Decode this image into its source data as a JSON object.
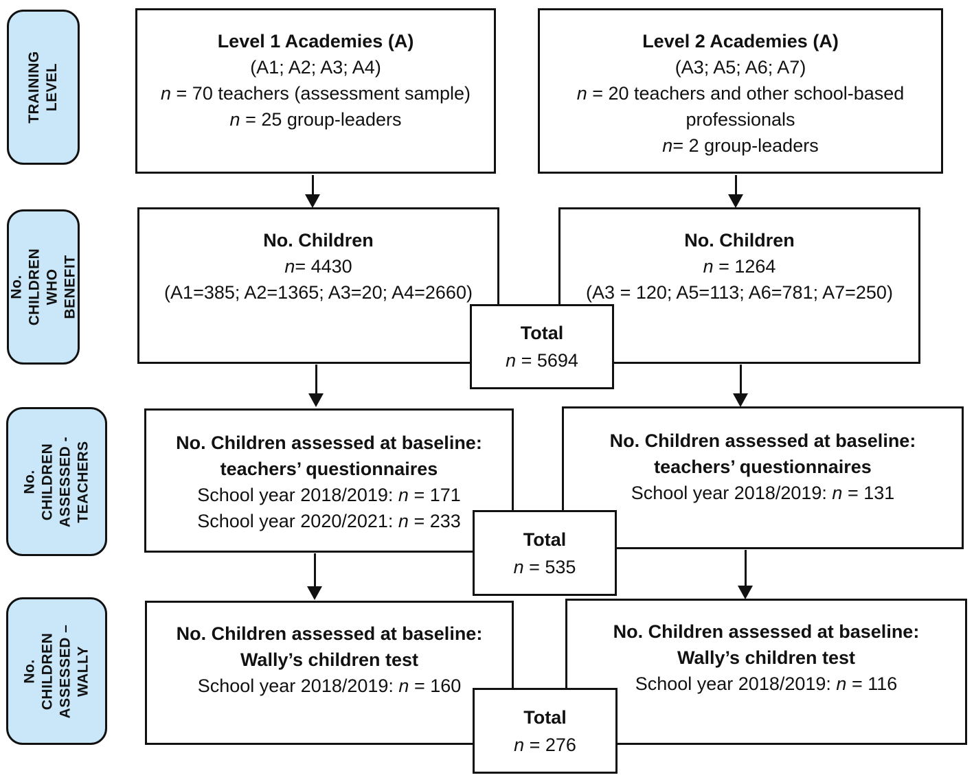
{
  "colors": {
    "label_bg": "#c9e7f8",
    "line": "#111111"
  },
  "sidebar": {
    "labels": [
      "TRAINING\nLEVEL",
      "No. CHILDREN\nWHO BENEFIT",
      "No. CHILDREN\nASSESSED -\nTEACHERS",
      "No. CHILDREN\nASSESSED –\nWALLY"
    ]
  },
  "rows": [
    {
      "label": "TRAINING LEVEL",
      "left": {
        "title": "Level 1 Academies (A)",
        "lines": [
          "(A1; A2; A3; A4)",
          "n = 70 teachers (assessment sample)",
          "n = 25 group-leaders"
        ]
      },
      "right": {
        "title": "Level 2 Academies (A)",
        "lines": [
          "(A3; A5; A6; A7)",
          "n = 20 teachers and other school-based professionals",
          "n= 2 group-leaders"
        ]
      }
    },
    {
      "label": "No. CHILDREN WHO BENEFIT",
      "left": {
        "title": "No. Children",
        "lines": [
          "n= 4430",
          "(A1=385; A2=1365; A3=20; A4=2660)"
        ]
      },
      "right": {
        "title": "No. Children",
        "lines": [
          "n = 1264",
          "(A3 = 120; A5=113; A6=781; A7=250)"
        ]
      },
      "total": {
        "title": "Total",
        "value": "n = 5694"
      }
    },
    {
      "label": "No. CHILDREN ASSESSED - TEACHERS",
      "left": {
        "title": "No. Children assessed at baseline:",
        "subtitle": "teachers’ questionnaires",
        "lines": [
          "School year 2018/2019: n = 171",
          "School year 2020/2021: n = 233"
        ]
      },
      "right": {
        "title": "No. Children assessed at baseline:",
        "subtitle": "teachers’ questionnaires",
        "lines": [
          "School year 2018/2019: n = 131"
        ]
      },
      "total": {
        "title": "Total",
        "value": "n = 535"
      }
    },
    {
      "label": "No. CHILDREN ASSESSED – WALLY",
      "left": {
        "title": "No. Children assessed at baseline:",
        "subtitle": "Wally’s children test",
        "lines": [
          "School year 2018/2019: n = 160"
        ]
      },
      "right": {
        "title": "No. Children assessed at baseline:",
        "subtitle": "Wally’s children test",
        "lines": [
          "School year 2018/2019: n = 116"
        ]
      },
      "total": {
        "title": "Total",
        "value": "n = 276"
      }
    }
  ]
}
